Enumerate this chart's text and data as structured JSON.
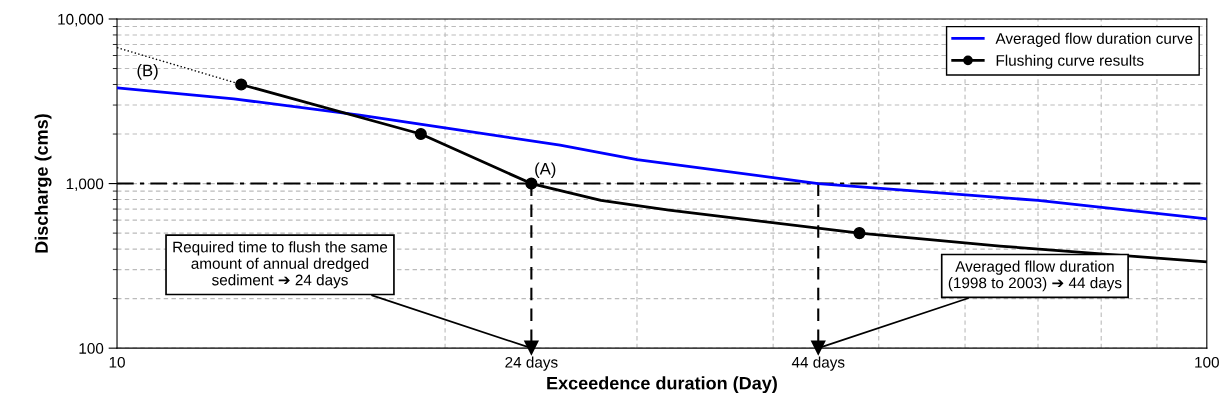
{
  "chart_data": {
    "type": "line",
    "xlabel": "Exceedence duration (Day)",
    "ylabel": "Discharge (cms)",
    "log": "xy",
    "xlim": [
      10,
      100
    ],
    "xticks": [
      10,
      {
        "value": 24,
        "label": "24 days"
      },
      {
        "value": 44,
        "label": "44 days"
      },
      100
    ],
    "ylim": [
      100,
      10000
    ],
    "yticks": [
      100,
      {
        "value": 1000,
        "label": "1,000"
      },
      {
        "value": 10000,
        "label": "10,000"
      }
    ],
    "grid": true,
    "legend": "top right",
    "series": [
      {
        "name": "Averaged flow duration curve",
        "type": "line",
        "color": "#0000ff",
        "x": [
          10,
          12.8,
          16.7,
          20,
          25.5,
          30,
          44,
          70,
          100
        ],
        "values": [
          3810,
          3270,
          2610,
          2180,
          1710,
          1400,
          1000,
          790,
          610
        ]
      },
      {
        "type": "line",
        "color": "#000000",
        "x": [
          13,
          19,
          22.2,
          24,
          27.8,
          32.1,
          48,
          64.6,
          100
        ],
        "values": [
          4000,
          2000,
          1260,
          1000,
          790,
          690,
          500,
          417,
          334
        ]
      },
      {
        "type": "line",
        "color": "#000000",
        "line_style": "dotted",
        "x": [
          10,
          13
        ],
        "values": [
          6700,
          4000
        ]
      },
      {
        "name": "Flushing curve results",
        "type": "scatter",
        "marker": "circle",
        "color": "#000000",
        "x": [
          13,
          19,
          24,
          48
        ],
        "values": [
          4000,
          2000,
          1000,
          500
        ]
      }
    ],
    "ref_lines": [
      {
        "axis": "y",
        "value": 1000,
        "color": "#000000",
        "line_style": "dashed"
      },
      {
        "axis": "x",
        "value": 24,
        "color": "#000000",
        "line_style": "dashed"
      },
      {
        "axis": "x",
        "value": 44,
        "color": "#000000",
        "line_style": "dashed"
      }
    ],
    "annotations": [
      {
        "text": "(A)",
        "x": 24,
        "y": 1000
      },
      {
        "text": "(B)",
        "x": 10,
        "y": 3810
      },
      "Required time to flush the same\namount of annual dredged\nsediment ➔ 24 days",
      "Averaged fllow duration\n(1998 to 2003) ➔ 44 days"
    ]
  }
}
